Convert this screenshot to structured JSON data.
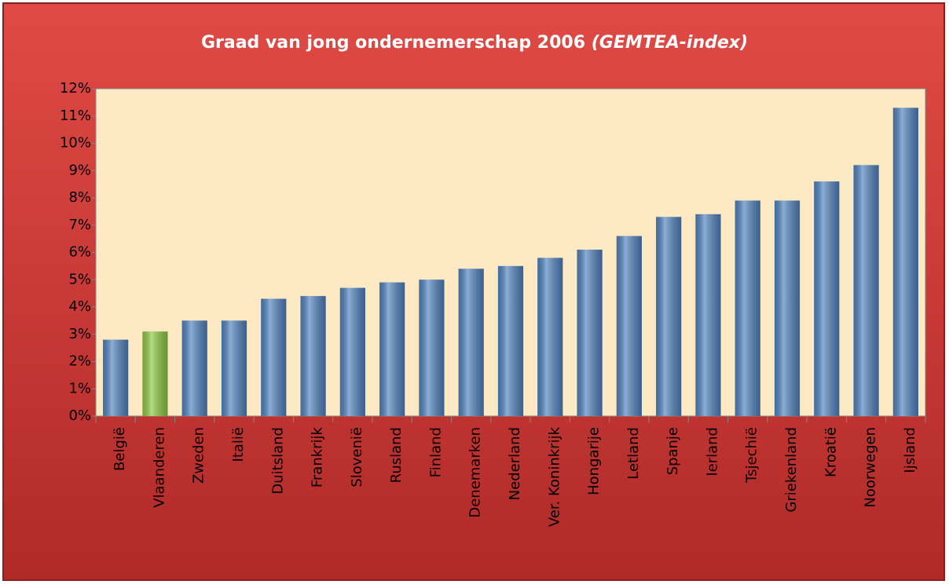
{
  "chart_data": {
    "type": "bar",
    "title": "Graad van jong ondernemerschap  2006",
    "title_note": "(GEMTEA-index)",
    "categories": [
      "België",
      "Vlaanderen",
      "Zweden",
      "Italië",
      "Duitsland",
      "Frankrijk",
      "Slovenië",
      "Rusland",
      "Finland",
      "Denemarken",
      "Nederland",
      "Ver. Koninkrijk",
      "Hongarije",
      "Letland",
      "Spanje",
      "Ierland",
      "Tsjechië",
      "Griekenland",
      "Kroatië",
      "Noorwegen",
      "Ijsland"
    ],
    "values": [
      2.8,
      3.1,
      3.5,
      3.5,
      4.3,
      4.4,
      4.7,
      4.9,
      5.0,
      5.4,
      5.5,
      5.8,
      6.1,
      6.6,
      7.3,
      7.4,
      7.9,
      7.9,
      8.6,
      9.2,
      11.3
    ],
    "colors": [
      "#4f81bd",
      "#8cc63f",
      "#4f81bd",
      "#4f81bd",
      "#4f81bd",
      "#4f81bd",
      "#4f81bd",
      "#4f81bd",
      "#4f81bd",
      "#4f81bd",
      "#4f81bd",
      "#4f81bd",
      "#4f81bd",
      "#4f81bd",
      "#4f81bd",
      "#4f81bd",
      "#4f81bd",
      "#4f81bd",
      "#4f81bd",
      "#4f81bd",
      "#4f81bd"
    ],
    "ylim": [
      0,
      12
    ],
    "yticks": [
      {
        "value": 0,
        "label": "0%"
      },
      {
        "value": 1,
        "label": "1%"
      },
      {
        "value": 2,
        "label": "2%"
      },
      {
        "value": 3,
        "label": "3%"
      },
      {
        "value": 4,
        "label": "4%"
      },
      {
        "value": 5,
        "label": "5%"
      },
      {
        "value": 6,
        "label": "6%"
      },
      {
        "value": 7,
        "label": "7%"
      },
      {
        "value": 8,
        "label": "8%"
      },
      {
        "value": 9,
        "label": "9%"
      },
      {
        "value": 10,
        "label": "10%"
      },
      {
        "value": 11,
        "label": "11%"
      },
      {
        "value": 12,
        "label": "12%"
      }
    ],
    "grid": false
  }
}
